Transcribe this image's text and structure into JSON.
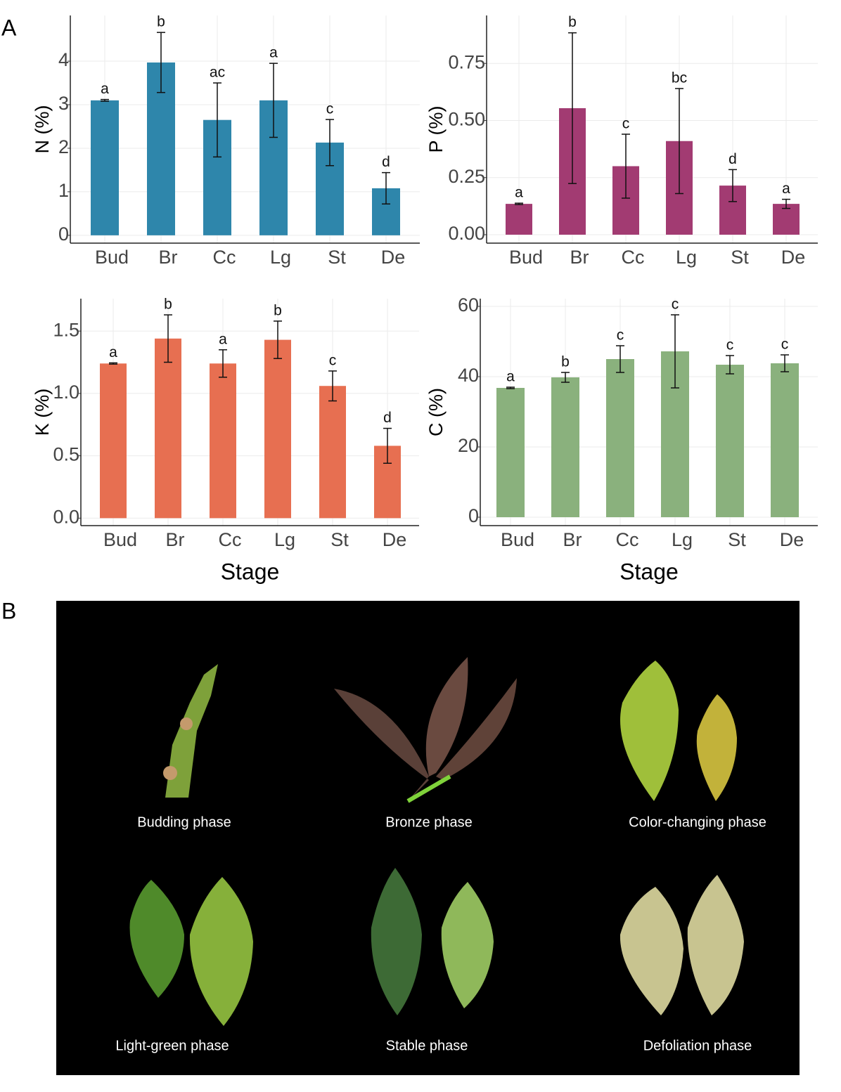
{
  "panel_labels": [
    "A",
    "B"
  ],
  "chart_data": [
    {
      "type": "bar",
      "ylabel": "N (%)",
      "color": "#2e86ab",
      "categories": [
        "Bud",
        "Br",
        "Cc",
        "Lg",
        "St",
        "De"
      ],
      "values": [
        3.1,
        3.97,
        2.65,
        3.1,
        2.13,
        1.08
      ],
      "errors": [
        0.02,
        0.69,
        0.85,
        0.85,
        0.53,
        0.36
      ],
      "annotations": [
        "a",
        "b",
        "ac",
        "a",
        "c",
        "d"
      ],
      "ylim": [
        -0.18,
        5.05
      ],
      "yticks": [
        0,
        1,
        2,
        3,
        4
      ],
      "grid": true
    },
    {
      "type": "bar",
      "ylabel": "P (%)",
      "color": "#a23b72",
      "categories": [
        "Bud",
        "Br",
        "Cc",
        "Lg",
        "St",
        "De"
      ],
      "values": [
        0.135,
        0.554,
        0.3,
        0.41,
        0.215,
        0.135
      ],
      "errors": [
        0.003,
        0.33,
        0.14,
        0.23,
        0.07,
        0.02
      ],
      "annotations": [
        "a",
        "b",
        "c",
        "bc",
        "d",
        "a"
      ],
      "ylim": [
        -0.037,
        0.96
      ],
      "yticks": [
        {
          "value": 0,
          "label": "0.00"
        },
        0.25,
        {
          "value": 0.5,
          "label": "0.50"
        },
        0.75
      ],
      "grid": true
    },
    {
      "type": "bar",
      "ylabel": "K (%)",
      "xlabel": "Stage",
      "color": "#e76f51",
      "categories": [
        "Bud",
        "Br",
        "Cc",
        "Lg",
        "St",
        "De"
      ],
      "values": [
        1.24,
        1.44,
        1.24,
        1.43,
        1.06,
        0.58
      ],
      "errors": [
        0.005,
        0.19,
        0.11,
        0.15,
        0.12,
        0.14
      ],
      "annotations": [
        "a",
        "b",
        "a",
        "b",
        "c",
        "d"
      ],
      "ylim": [
        -0.06,
        1.76
      ],
      "yticks": [
        {
          "value": 0,
          "label": "0.0"
        },
        0.5,
        {
          "value": 1,
          "label": "1.0"
        },
        1.5
      ],
      "grid": true
    },
    {
      "type": "bar",
      "ylabel": "C (%)",
      "xlabel": "Stage",
      "color": "#8ab17d",
      "categories": [
        "Bud",
        "Br",
        "Cc",
        "Lg",
        "St",
        "De"
      ],
      "values": [
        36.8,
        39.8,
        45,
        47.2,
        43.4,
        43.8
      ],
      "errors": [
        0.2,
        1.4,
        3.8,
        10.4,
        2.6,
        2.4
      ],
      "annotations": [
        "a",
        "b",
        "c",
        "c",
        "c",
        "c"
      ],
      "ylim": [
        -2.4,
        62.2
      ],
      "yticks": [
        0,
        20,
        40,
        60
      ],
      "grid": true
    }
  ],
  "photos": {
    "captions": [
      "Budding phase",
      "Bronze phase",
      "Color-changing phase",
      "Light-green phase",
      "Stable phase",
      "Defoliation phase"
    ]
  }
}
